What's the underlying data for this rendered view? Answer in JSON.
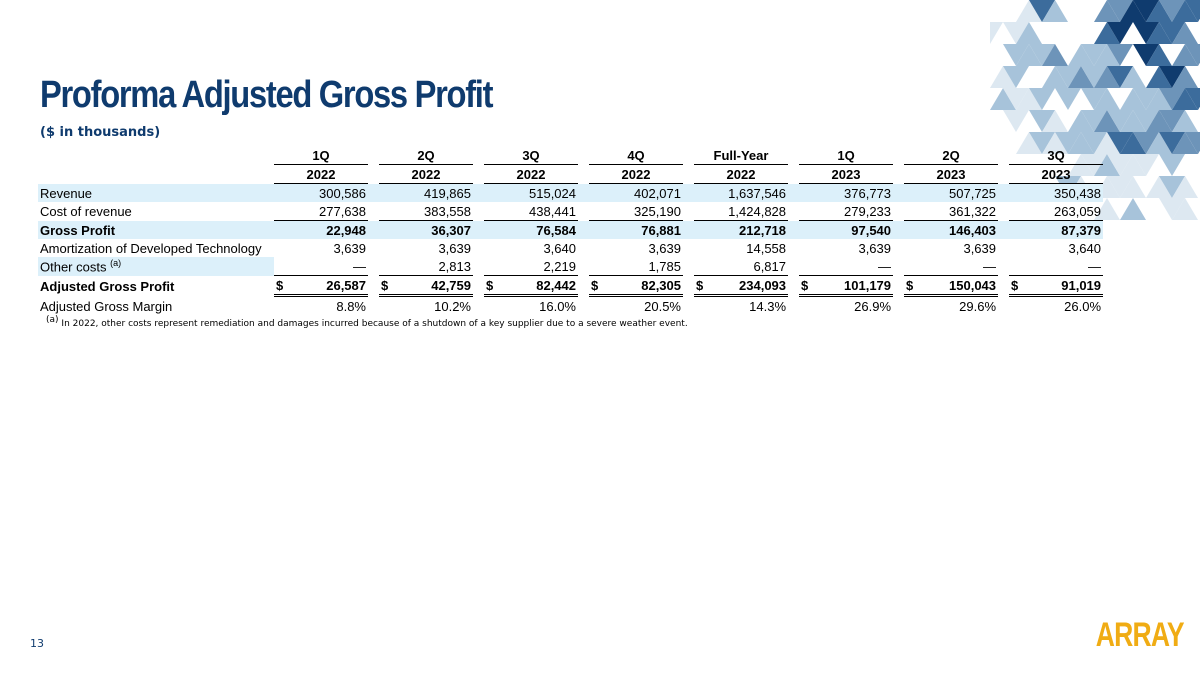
{
  "title": "Proforma Adjusted Gross Profit",
  "subtitle": "($ in thousands)",
  "columns": [
    {
      "period": "1Q",
      "year": "2022"
    },
    {
      "period": "2Q",
      "year": "2022"
    },
    {
      "period": "3Q",
      "year": "2022"
    },
    {
      "period": "4Q",
      "year": "2022"
    },
    {
      "period": "Full-Year",
      "year": "2022"
    },
    {
      "period": "1Q",
      "year": "2023"
    },
    {
      "period": "2Q",
      "year": "2023"
    },
    {
      "period": "3Q",
      "year": "2023"
    }
  ],
  "rows": [
    {
      "label": "Revenue",
      "values": [
        "300,586",
        "419,865",
        "515,024",
        "402,071",
        "1,637,546",
        "376,773",
        "507,725",
        "350,438"
      ]
    },
    {
      "label": "Cost of revenue",
      "values": [
        "277,638",
        "383,558",
        "438,441",
        "325,190",
        "1,424,828",
        "279,233",
        "361,322",
        "263,059"
      ]
    },
    {
      "label": "Gross Profit",
      "values": [
        "22,948",
        "36,307",
        "76,584",
        "76,881",
        "212,718",
        "97,540",
        "146,403",
        "87,379"
      ]
    },
    {
      "label": "Amortization of Developed Technology",
      "values": [
        "3,639",
        "3,639",
        "3,640",
        "3,639",
        "14,558",
        "3,639",
        "3,639",
        "3,640"
      ]
    },
    {
      "label": "Other costs",
      "note": "(a)",
      "values": [
        "—",
        "2,813",
        "2,219",
        "1,785",
        "6,817",
        "—",
        "—",
        "—"
      ]
    },
    {
      "label": "Adjusted Gross Profit",
      "currency": "$",
      "values": [
        "26,587",
        "42,759",
        "82,442",
        "82,305",
        "234,093",
        "101,179",
        "150,043",
        "91,019"
      ]
    },
    {
      "label": "Adjusted Gross Margin",
      "values": [
        "8.8%",
        "10.2%",
        "16.0%",
        "20.5%",
        "14.3%",
        "26.9%",
        "29.6%",
        "26.0%"
      ]
    }
  ],
  "footnote": {
    "marker": "(a)",
    "text": "In 2022, other costs represent remediation and damages incurred because of a shutdown of a key supplier due to a severe weather event."
  },
  "page_number": "13",
  "logo_text": "ARRAY",
  "colors": {
    "title": "#0f3b6e",
    "row_shade": "#dcf0fa",
    "logo": "#f0ac14",
    "decor": [
      "#0f3b6e",
      "#3c6c9c",
      "#6d94b9",
      "#a7c3da",
      "#dde8f1"
    ]
  }
}
